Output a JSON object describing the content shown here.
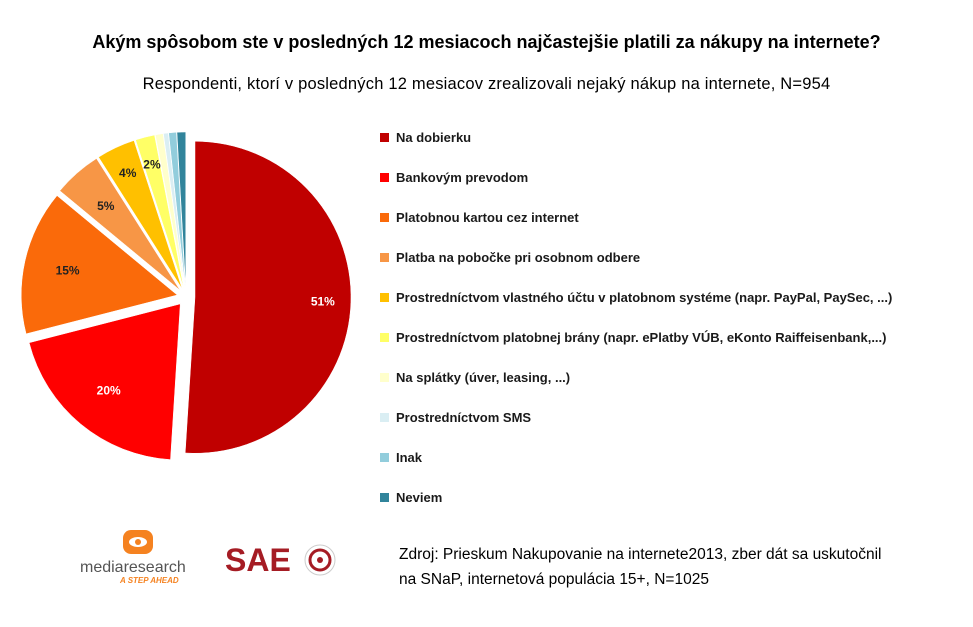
{
  "chart_data": {
    "type": "pie",
    "title": "Akým  spôsobom ste v posledných 12 mesiacoch najčastejšie platili za nákupy na internete?",
    "subtitle": "Respondenti, ktorí v posledných 12 mesiacov zrealizovali nejaký nákup na internete, N=954",
    "legend_position": "right",
    "slices": [
      {
        "label": "Na dobierku",
        "value": 51,
        "data_label": "51%",
        "color": "#C00000",
        "label_color": "#ffffff"
      },
      {
        "label": "Bankovým prevodom",
        "value": 20,
        "data_label": "20%",
        "color": "#FF0000",
        "label_color": "#ffffff"
      },
      {
        "label": "Platobnou kartou cez internet",
        "value": 15,
        "data_label": "15%",
        "color": "#FA6A0A",
        "label_color": "#222222"
      },
      {
        "label": "Platba na pobočke pri osobnom odbere",
        "value": 5,
        "data_label": "5%",
        "color": "#F79646",
        "label_color": "#222222"
      },
      {
        "label": "Prostredníctvom vlastného účtu v platobnom systéme (napr. PayPal, PaySec, ...)",
        "value": 4,
        "data_label": "4%",
        "color": "#FFC000",
        "label_color": "#222222"
      },
      {
        "label": "Prostredníctvom platobnej brány (napr. ePlatby VÚB, eKonto Raiffeisenbank,...)",
        "value": 2,
        "data_label": "2%",
        "color": "#FFFF66",
        "label_color": "#222222"
      },
      {
        "label": "Na splátky (úver, leasing, ...)",
        "value": 0.8,
        "data_label": "",
        "color": "#FFFFCC",
        "label_color": "#222222"
      },
      {
        "label": "Prostredníctvom SMS",
        "value": 0.5,
        "data_label": "",
        "color": "#DAEEF3",
        "label_color": "#222222"
      },
      {
        "label": "Inak",
        "value": 0.8,
        "data_label": "",
        "color": "#92CDDC",
        "label_color": "#222222"
      },
      {
        "label": "Neviem",
        "value": 0.9,
        "data_label": "",
        "color": "#31849B",
        "label_color": "#222222"
      }
    ]
  },
  "logos": {
    "mediaresearch": "mediaresearch",
    "mediaresearch_tagline": "A STEP AHEAD",
    "sae": "SAE"
  },
  "source": {
    "line1": "Zdroj: Prieskum Nakupovanie na internete2013, zber dát sa uskutočnil",
    "line2": "na SNaP, internetová  populácia 15+, N=1025"
  }
}
